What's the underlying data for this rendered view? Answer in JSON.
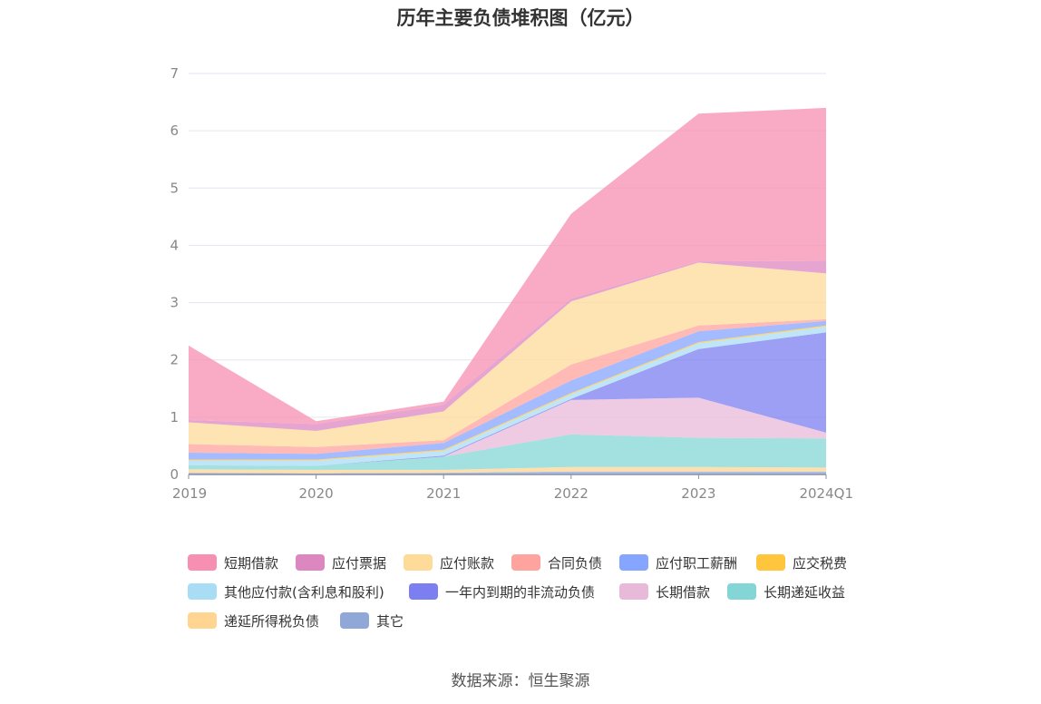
{
  "chart_data": {
    "type": "area",
    "stacked": true,
    "title": "历年主要负债堆积图（亿元）",
    "categories": [
      "2019",
      "2020",
      "2021",
      "2022",
      "2023",
      "2024Q1"
    ],
    "ylim": [
      0,
      7
    ],
    "yticks": [
      "0",
      "1",
      "2",
      "3",
      "4",
      "5",
      "6",
      "7"
    ],
    "grid": true,
    "legend_position": "bottom",
    "series": [
      {
        "name": "其它",
        "color": "#8fa8d8",
        "values": [
          0.03,
          0.02,
          0.03,
          0.05,
          0.05,
          0.05
        ]
      },
      {
        "name": "递延所得税负债",
        "color": "#ffd591",
        "values": [
          0.06,
          0.06,
          0.05,
          0.08,
          0.08,
          0.07
        ]
      },
      {
        "name": "长期递延收益",
        "color": "#84d6d6",
        "values": [
          0.07,
          0.07,
          0.23,
          0.57,
          0.51,
          0.51
        ]
      },
      {
        "name": "长期借款",
        "color": "#e9b9d9",
        "values": [
          0.0,
          0.0,
          0.0,
          0.6,
          0.7,
          0.1
        ]
      },
      {
        "name": "一年内到期的非流动负债",
        "color": "#7b7ff0",
        "values": [
          0.0,
          0.0,
          0.02,
          0.02,
          0.85,
          1.75
        ]
      },
      {
        "name": "其他应付款(含利息和股利)",
        "color": "#a8ddf5",
        "values": [
          0.08,
          0.09,
          0.08,
          0.08,
          0.1,
          0.1
        ]
      },
      {
        "name": "应交税费",
        "color": "#ffc53d",
        "values": [
          0.02,
          0.02,
          0.02,
          0.02,
          0.02,
          0.02
        ]
      },
      {
        "name": "应付职工薪酬",
        "color": "#85a5ff",
        "values": [
          0.12,
          0.1,
          0.12,
          0.22,
          0.19,
          0.08
        ]
      },
      {
        "name": "合同负债",
        "color": "#ffa39e",
        "values": [
          0.15,
          0.12,
          0.05,
          0.28,
          0.1,
          0.03
        ]
      },
      {
        "name": "应付账款",
        "color": "#ffdb99",
        "values": [
          0.38,
          0.28,
          0.5,
          1.1,
          1.1,
          0.8
        ]
      },
      {
        "name": "应付票据",
        "color": "#dd87c1",
        "values": [
          0.04,
          0.12,
          0.12,
          0.05,
          0.02,
          0.22
        ]
      },
      {
        "name": "短期借款",
        "color": "#f78fb3",
        "values": [
          1.3,
          0.05,
          0.05,
          1.48,
          2.58,
          2.67
        ]
      }
    ]
  },
  "legend": {
    "items": [
      {
        "label": "短期借款",
        "color": "#f78fb3"
      },
      {
        "label": "应付票据",
        "color": "#dd87c1"
      },
      {
        "label": "应付账款",
        "color": "#ffdb99"
      },
      {
        "label": "合同负债",
        "color": "#ffa39e"
      },
      {
        "label": "应付职工薪酬",
        "color": "#85a5ff"
      },
      {
        "label": "应交税费",
        "color": "#ffc53d"
      },
      {
        "label": "其他应付款(含利息和股利)",
        "color": "#a8ddf5"
      },
      {
        "label": "一年内到期的非流动负债",
        "color": "#7b7ff0"
      },
      {
        "label": "长期借款",
        "color": "#e9b9d9"
      },
      {
        "label": "长期递延收益",
        "color": "#84d6d6"
      },
      {
        "label": "递延所得税负债",
        "color": "#ffd591"
      },
      {
        "label": "其它",
        "color": "#8fa8d8"
      }
    ]
  },
  "source": "数据来源：恒生聚源"
}
